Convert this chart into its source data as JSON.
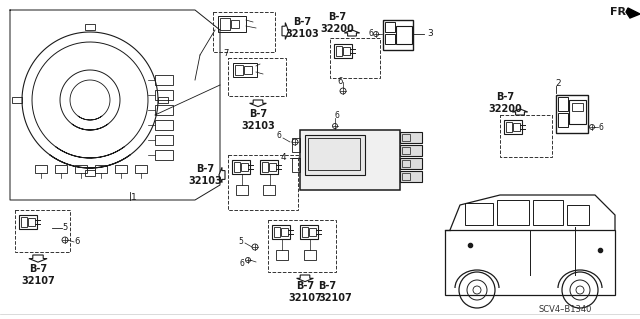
{
  "bg_color": "#ffffff",
  "line_color": "#1a1a1a",
  "gray_color": "#888888",
  "part_labels": {
    "B7_32103": "B-7\n32103",
    "B7_32200": "B-7\n32200",
    "B7_32107": "B-7\n32107"
  },
  "diagram_code": "SCV4–B1340",
  "fr_label": "FR.",
  "figsize": [
    6.4,
    3.19
  ],
  "dpi": 100
}
